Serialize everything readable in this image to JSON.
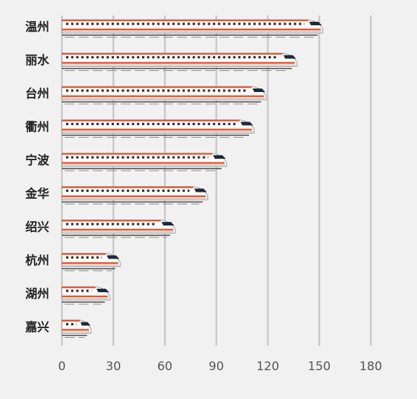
{
  "chart_data": {
    "type": "bar",
    "orientation": "horizontal",
    "categories": [
      "温州",
      "丽水",
      "台州",
      "衢州",
      "宁波",
      "金华",
      "绍兴",
      "杭州",
      "湖州",
      "嘉兴"
    ],
    "values": [
      152,
      137,
      119,
      112,
      96,
      85,
      66,
      34,
      28,
      17
    ],
    "xlim": [
      0,
      180
    ],
    "xticks": [
      "0",
      "30",
      "60",
      "90",
      "120",
      "150",
      "180"
    ],
    "grid": true,
    "bar_style": "high-speed-train",
    "colors": {
      "background": "#f1f1f1",
      "gridline": "#c8c8c8",
      "train_body": "#fafafa",
      "train_stripe": "#e8532a",
      "train_window": "#2b2b2b",
      "train_outline": "#9a9a9a"
    }
  }
}
